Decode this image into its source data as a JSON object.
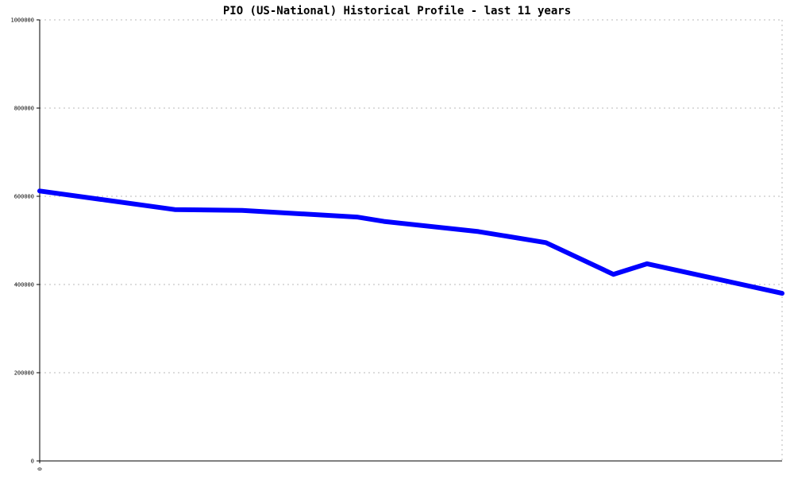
{
  "chart_data": {
    "type": "line",
    "title": "PIO (US-National) Historical Profile - last 11 years",
    "xlabel": "",
    "ylabel": "",
    "ylim": [
      0,
      1000000
    ],
    "yticks": [
      0,
      200000,
      400000,
      600000,
      800000,
      1000000
    ],
    "y_tick_labels": [
      "0",
      "200000",
      "400000",
      "600000",
      "800000",
      "1000000"
    ],
    "xlim": [
      0,
      11
    ],
    "x_tick_labels": [
      "0"
    ],
    "grid": true,
    "legend": "none",
    "colors": {
      "series": "#0000ff",
      "grid": "#b8b8b8",
      "axis": "#000000",
      "background": "#ffffff"
    },
    "series": [
      {
        "x": [
          0,
          2,
          3,
          4.7,
          5.1,
          6.5,
          7.5,
          8.5,
          9,
          11
        ],
        "values": [
          612000,
          570000,
          568000,
          553000,
          543000,
          520000,
          495000,
          423000,
          447000,
          380000
        ]
      }
    ]
  }
}
